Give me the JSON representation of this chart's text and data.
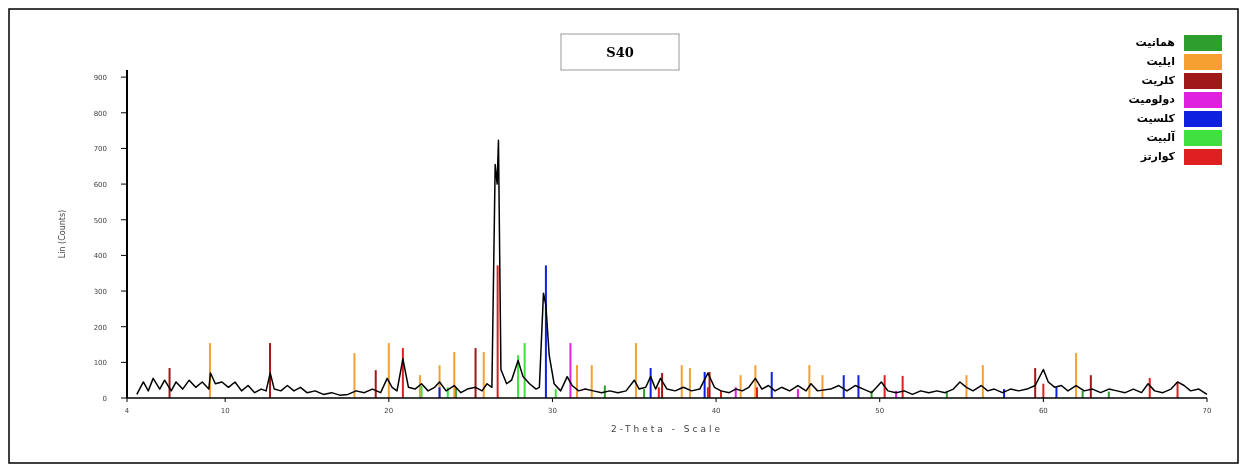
{
  "chart_data": {
    "type": "line",
    "title": "S40",
    "xlabel": "2-Theta - Scale",
    "ylabel": "Lin (Counts)",
    "xlim": [
      4,
      70
    ],
    "ylim": [
      0,
      920
    ],
    "xticks": [
      4,
      10,
      20,
      30,
      40,
      50,
      60,
      70
    ],
    "yticks": [
      0,
      100,
      200,
      300,
      400,
      500,
      600,
      700,
      800,
      900
    ],
    "grid": false,
    "legend": "top right",
    "series": [
      {
        "color": "#000000",
        "x": [
          4.6,
          5.0,
          5.3,
          5.6,
          6.0,
          6.3,
          6.7,
          7.0,
          7.4,
          7.8,
          8.2,
          8.6,
          9.0,
          9.1,
          9.4,
          9.8,
          10.2,
          10.6,
          11.0,
          11.4,
          11.8,
          12.2,
          12.5,
          12.75,
          13.0,
          13.4,
          13.8,
          14.2,
          14.6,
          15.0,
          15.5,
          16.0,
          16.5,
          17.0,
          17.5,
          18.0,
          18.5,
          19.0,
          19.5,
          19.9,
          20.2,
          20.5,
          20.86,
          21.2,
          21.6,
          22.0,
          22.4,
          22.8,
          23.1,
          23.5,
          24.0,
          24.4,
          24.8,
          25.3,
          25.7,
          26.0,
          26.3,
          26.5,
          26.62,
          26.7,
          26.85,
          27.2,
          27.5,
          27.9,
          28.2,
          28.6,
          29.0,
          29.2,
          29.45,
          29.6,
          29.8,
          30.1,
          30.5,
          30.9,
          31.2,
          31.6,
          32.0,
          32.5,
          33.0,
          33.5,
          34.0,
          34.5,
          35.0,
          35.3,
          35.7,
          36.0,
          36.3,
          36.6,
          37.0,
          37.5,
          38.0,
          38.5,
          39.0,
          39.5,
          39.9,
          40.3,
          40.8,
          41.2,
          41.6,
          42.0,
          42.4,
          42.8,
          43.2,
          43.6,
          44.0,
          44.5,
          45.0,
          45.5,
          45.8,
          46.2,
          47.0,
          47.5,
          48.0,
          48.5,
          49.0,
          49.5,
          50.1,
          50.5,
          51.0,
          51.5,
          52.0,
          52.5,
          53.0,
          53.5,
          54.0,
          54.5,
          54.9,
          55.3,
          55.7,
          56.2,
          56.6,
          57.0,
          57.5,
          58.0,
          58.5,
          59.0,
          59.5,
          60.0,
          60.3,
          60.7,
          61.1,
          61.5,
          62.0,
          62.5,
          63.0,
          63.5,
          64.0,
          64.5,
          65.0,
          65.5,
          66.0,
          66.4,
          66.8,
          67.3,
          67.8,
          68.2,
          68.6,
          69.0,
          69.5,
          70.0
        ],
        "values": [
          10,
          45,
          20,
          55,
          25,
          50,
          20,
          45,
          25,
          50,
          30,
          45,
          25,
          70,
          40,
          45,
          30,
          45,
          20,
          35,
          15,
          25,
          20,
          70,
          25,
          20,
          35,
          20,
          30,
          15,
          20,
          10,
          15,
          8,
          10,
          20,
          15,
          25,
          15,
          55,
          30,
          20,
          110,
          30,
          25,
          40,
          20,
          30,
          45,
          20,
          35,
          15,
          25,
          30,
          20,
          40,
          30,
          655,
          600,
          723,
          80,
          40,
          50,
          105,
          60,
          40,
          25,
          30,
          294,
          260,
          120,
          40,
          20,
          60,
          35,
          20,
          25,
          20,
          15,
          20,
          15,
          20,
          50,
          25,
          30,
          60,
          25,
          55,
          25,
          20,
          30,
          20,
          25,
          70,
          30,
          20,
          15,
          25,
          20,
          30,
          55,
          25,
          35,
          20,
          30,
          20,
          35,
          20,
          40,
          20,
          25,
          35,
          20,
          35,
          25,
          15,
          45,
          20,
          15,
          20,
          10,
          20,
          15,
          20,
          15,
          25,
          45,
          30,
          20,
          35,
          20,
          25,
          15,
          25,
          20,
          25,
          35,
          80,
          45,
          30,
          35,
          20,
          35,
          20,
          25,
          15,
          25,
          20,
          15,
          25,
          15,
          40,
          20,
          15,
          25,
          45,
          35,
          20,
          25,
          10
        ]
      },
      {
        "type": "bar",
        "name": "هماتیت",
        "color": "#2e9e2e",
        "x": [
          24.1,
          33.2,
          35.6,
          49.5,
          54.1,
          62.4,
          64.0
        ],
        "values": [
          30,
          35,
          25,
          20,
          20,
          20,
          18
        ]
      },
      {
        "type": "bar",
        "name": "ایلیت",
        "color": "#f5a030",
        "x": [
          9.07,
          17.9,
          20.0,
          21.9,
          23.1,
          24.0,
          25.8,
          31.5,
          32.4,
          35.1,
          37.9,
          38.4,
          41.5,
          42.4,
          45.7,
          46.5,
          55.3,
          56.3,
          62.0
        ],
        "values": [
          154,
          126,
          154,
          64,
          92,
          129,
          129,
          92,
          92,
          154,
          92,
          84,
          64,
          92,
          92,
          64,
          64,
          92,
          126
        ]
      },
      {
        "type": "bar",
        "name": "کلریت",
        "color": "#a01818",
        "x": [
          6.6,
          12.74,
          19.2,
          25.3,
          36.7,
          39.6,
          59.5,
          62.9
        ],
        "values": [
          84,
          154,
          78,
          140,
          70,
          73,
          84,
          64
        ]
      },
      {
        "type": "bar",
        "name": "دولومیت",
        "color": "#e020e0",
        "x": [
          31.1,
          41.2,
          45.0,
          51.0
        ],
        "values": [
          154,
          30,
          25,
          20
        ]
      },
      {
        "type": "bar",
        "name": "کلسیت",
        "color": "#1020e0",
        "x": [
          23.1,
          29.6,
          36.0,
          39.3,
          43.4,
          47.8,
          48.7,
          57.6,
          60.8
        ],
        "values": [
          30,
          372,
          84,
          73,
          73,
          64,
          64,
          25,
          30
        ]
      },
      {
        "type": "bar",
        "name": "آلبیت",
        "color": "#40e040",
        "x": [
          22.0,
          23.6,
          27.9,
          28.3,
          30.2
        ],
        "values": [
          35,
          30,
          120,
          154,
          25
        ]
      },
      {
        "type": "bar",
        "name": "کوارتز",
        "color": "#e02020",
        "x": [
          20.86,
          26.65,
          36.5,
          39.5,
          40.3,
          42.5,
          50.3,
          51.4,
          60.0,
          66.5,
          68.2
        ],
        "values": [
          140,
          372,
          30,
          30,
          20,
          30,
          64,
          62,
          40,
          56,
          45
        ]
      }
    ]
  }
}
